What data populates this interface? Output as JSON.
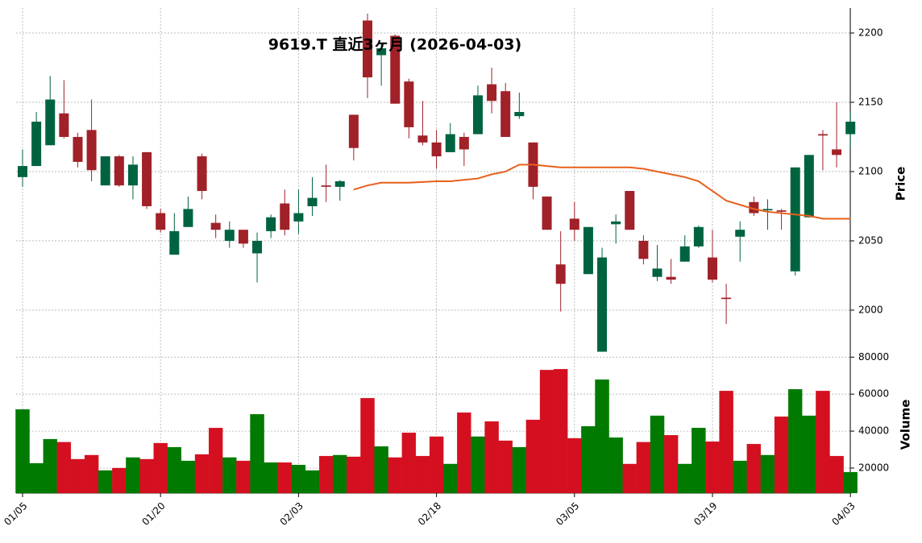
{
  "chart_data": {
    "type": "candlestick",
    "title": "9619.T  直近3ヶ月  (2026-04-03)",
    "categories": [
      "01/05",
      null,
      null,
      null,
      null,
      null,
      null,
      null,
      null,
      null,
      "01/20",
      null,
      null,
      null,
      null,
      null,
      null,
      null,
      null,
      null,
      "02/03",
      null,
      null,
      null,
      null,
      null,
      null,
      null,
      null,
      null,
      "02/18",
      null,
      null,
      null,
      null,
      null,
      null,
      null,
      null,
      null,
      "03/05",
      null,
      null,
      null,
      null,
      null,
      null,
      null,
      null,
      null,
      "03/19",
      null,
      null,
      null,
      null,
      null,
      null,
      null,
      null,
      null,
      "04/03"
    ],
    "open": [
      2096,
      2104,
      2119,
      2142,
      2125,
      2130,
      2090,
      2111,
      2090,
      2114,
      2070,
      2040,
      2060,
      2111,
      2063,
      2050,
      2058,
      2041,
      2057,
      2077,
      2064,
      2075,
      2090,
      2089,
      2141,
      2209,
      2184,
      2198,
      2165,
      2126,
      2121,
      2114,
      2125,
      2127,
      2163,
      2158,
      2140,
      2121,
      2082,
      2033,
      2066,
      2026,
      1970,
      2062,
      2086,
      2050,
      2024,
      2024,
      2035,
      2046,
      2038,
      2009,
      2053,
      2078,
      2072,
      2072,
      2028,
      2067,
      2127,
      2116,
      2127
    ],
    "high": [
      2116,
      2143,
      2169,
      2166,
      2128,
      2152,
      2111,
      2112,
      2111,
      2114,
      2073,
      2070,
      2082,
      2113,
      2069,
      2064,
      2058,
      2056,
      2069,
      2087,
      2087,
      2096,
      2105,
      2094,
      2141,
      2214,
      2193,
      2199,
      2167,
      2151,
      2130,
      2135,
      2128,
      2162,
      2175,
      2164,
      2157,
      2121,
      2082,
      2057,
      2078,
      2060,
      2045,
      2069,
      2086,
      2054,
      2047,
      2037,
      2054,
      2061,
      2058,
      2019,
      2064,
      2082,
      2080,
      2073,
      2103,
      2112,
      2130,
      2150,
      2143
    ],
    "low": [
      2089,
      2104,
      2119,
      2124,
      2103,
      2093,
      2090,
      2089,
      2080,
      2073,
      2056,
      2040,
      2060,
      2080,
      2052,
      2045,
      2045,
      2020,
      2052,
      2054,
      2055,
      2068,
      2078,
      2079,
      2108,
      2153,
      2162,
      2149,
      2124,
      2119,
      2102,
      2114,
      2104,
      2127,
      2142,
      2125,
      2138,
      2080,
      2058,
      1999,
      2050,
      2026,
      1970,
      2048,
      2058,
      2033,
      2021,
      2019,
      2035,
      2045,
      2020,
      1990,
      2035,
      2068,
      2058,
      2058,
      2025,
      2067,
      2101,
      2103,
      2117
    ],
    "close": [
      2104,
      2136,
      2152,
      2125,
      2107,
      2101,
      2111,
      2090,
      2105,
      2075,
      2058,
      2057,
      2073,
      2086,
      2058,
      2058,
      2048,
      2050,
      2067,
      2058,
      2070,
      2081,
      2089,
      2093,
      2117,
      2168,
      2189,
      2149,
      2132,
      2121,
      2111,
      2127,
      2116,
      2155,
      2151,
      2125,
      2143,
      2089,
      2058,
      2019,
      2058,
      2060,
      2038,
      2064,
      2058,
      2037,
      2030,
      2022,
      2046,
      2060,
      2022,
      2008,
      2058,
      2070,
      2073,
      2071,
      2103,
      2112,
      2126,
      2112,
      2136
    ],
    "volume": [
      51700,
      22600,
      35650,
      34000,
      24800,
      27000,
      18700,
      20000,
      25700,
      24800,
      33500,
      31300,
      23900,
      27400,
      41700,
      25700,
      23900,
      49100,
      23000,
      23000,
      21700,
      18700,
      26500,
      27000,
      26100,
      57800,
      31700,
      25700,
      39100,
      26500,
      37000,
      22200,
      50000,
      37000,
      45200,
      34800,
      31300,
      46100,
      73000,
      73500,
      36100,
      42600,
      67800,
      36500,
      22200,
      34000,
      48300,
      37800,
      22200,
      41700,
      34300,
      61700,
      23900,
      33000,
      27000,
      47800,
      62600,
      48300,
      61700,
      26500,
      17800
    ],
    "ma": {
      "color": "#e8601c",
      "values": [
        null,
        null,
        null,
        null,
        null,
        null,
        null,
        null,
        null,
        null,
        null,
        null,
        null,
        null,
        null,
        null,
        null,
        null,
        null,
        null,
        null,
        null,
        null,
        null,
        2087,
        2090,
        2092,
        2092,
        2092,
        2092.5,
        2093,
        2093,
        2094,
        2095,
        2098,
        2100,
        2105,
        2105,
        2104,
        2103,
        2103,
        2103,
        2103,
        2103,
        2103,
        2102,
        2100,
        2098,
        2096,
        2093,
        2086,
        2079,
        2076,
        2073,
        2071,
        2070,
        2069,
        2068,
        2066,
        2066,
        2066
      ]
    },
    "up_color": "#006340",
    "down_color": "#a02128",
    "volume_up_color": "#007a00",
    "volume_down_color": "#d41020",
    "ylabel": "Price",
    "y2label": "Volume",
    "ylim": [
      1968,
      2218
    ],
    "yticks": [
      2000,
      2050,
      2100,
      2150,
      2200
    ],
    "y2lim": [
      6500,
      81000
    ],
    "y2ticks": [
      20000,
      40000,
      60000,
      80000
    ],
    "grid": true
  }
}
